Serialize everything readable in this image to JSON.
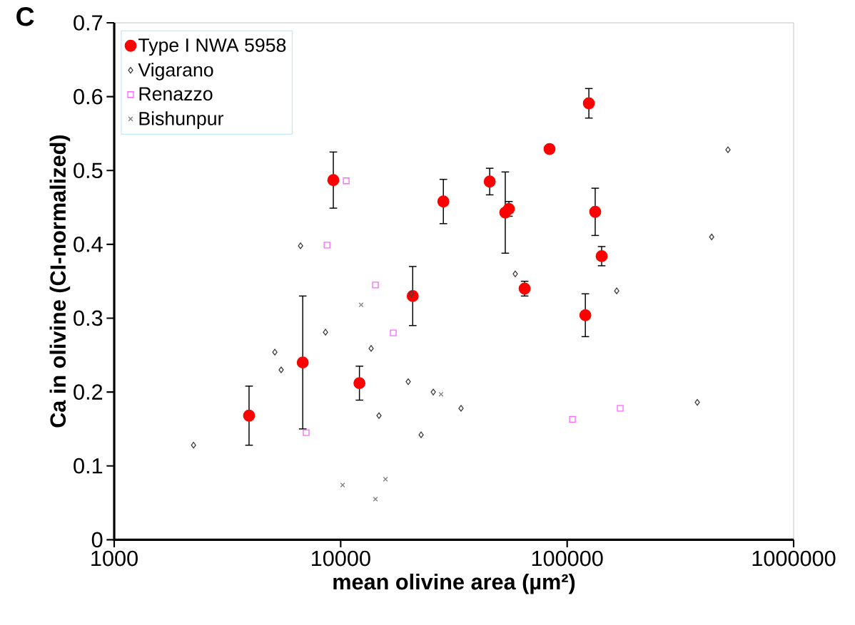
{
  "chart_data": {
    "type": "scatter",
    "xlabel": "mean olivine area (µm²)",
    "ylabel": "Ca in olivine (CI-normalized)",
    "annotations": [
      "C"
    ],
    "log": "x",
    "legend": "top left",
    "xlim": [
      1000,
      1000000
    ],
    "ylim": [
      0,
      0.7
    ],
    "xticks": [
      1000,
      10000,
      100000,
      1000000
    ],
    "yticks": [
      0,
      0.1,
      0.2,
      0.3,
      0.4,
      0.5,
      0.6,
      0.7
    ],
    "series": [
      {
        "name": "Type I NWA 5958",
        "color": "#ff0000",
        "marker": "circle",
        "x": [
          3940,
          6800,
          9280,
          12100,
          20800,
          28400,
          45500,
          53300,
          55300,
          64900,
          83600,
          124700,
          133000,
          142000,
          120300
        ],
        "values": [
          0.168,
          0.24,
          0.487,
          0.212,
          0.33,
          0.458,
          0.485,
          0.443,
          0.448,
          0.34,
          0.529,
          0.591,
          0.444,
          0.384,
          0.304
        ],
        "errors": [
          0.04,
          0.09,
          0.038,
          0.023,
          0.04,
          0.03,
          0.018,
          0.055,
          0.01,
          0.01,
          null,
          0.02,
          0.032,
          0.013,
          0.029
        ]
      },
      {
        "name": "Vigarano",
        "color": "#404040",
        "marker": "diamond",
        "x": [
          2240,
          5120,
          5460,
          6650,
          8570,
          13630,
          14760,
          19870,
          20500,
          22650,
          25640,
          34000,
          59000,
          165500,
          375600,
          434500,
          513000
        ],
        "values": [
          0.128,
          0.254,
          0.23,
          0.398,
          0.281,
          0.259,
          0.168,
          0.214,
          0.333,
          0.142,
          0.2,
          0.178,
          0.36,
          0.337,
          0.186,
          0.41,
          0.528
        ]
      },
      {
        "name": "Renazzo",
        "color": "#ff66ff",
        "marker": "square",
        "x": [
          10580,
          8700,
          14240,
          17070,
          7040,
          105500,
          171600
        ],
        "values": [
          0.486,
          0.399,
          0.345,
          0.28,
          0.145,
          0.163,
          0.178
        ]
      },
      {
        "name": "Bishunpur",
        "color": "#808080",
        "marker": "cross",
        "x": [
          12310,
          27750,
          10200,
          14240,
          15770
        ],
        "values": [
          0.318,
          0.197,
          0.074,
          0.055,
          0.082
        ]
      }
    ]
  }
}
